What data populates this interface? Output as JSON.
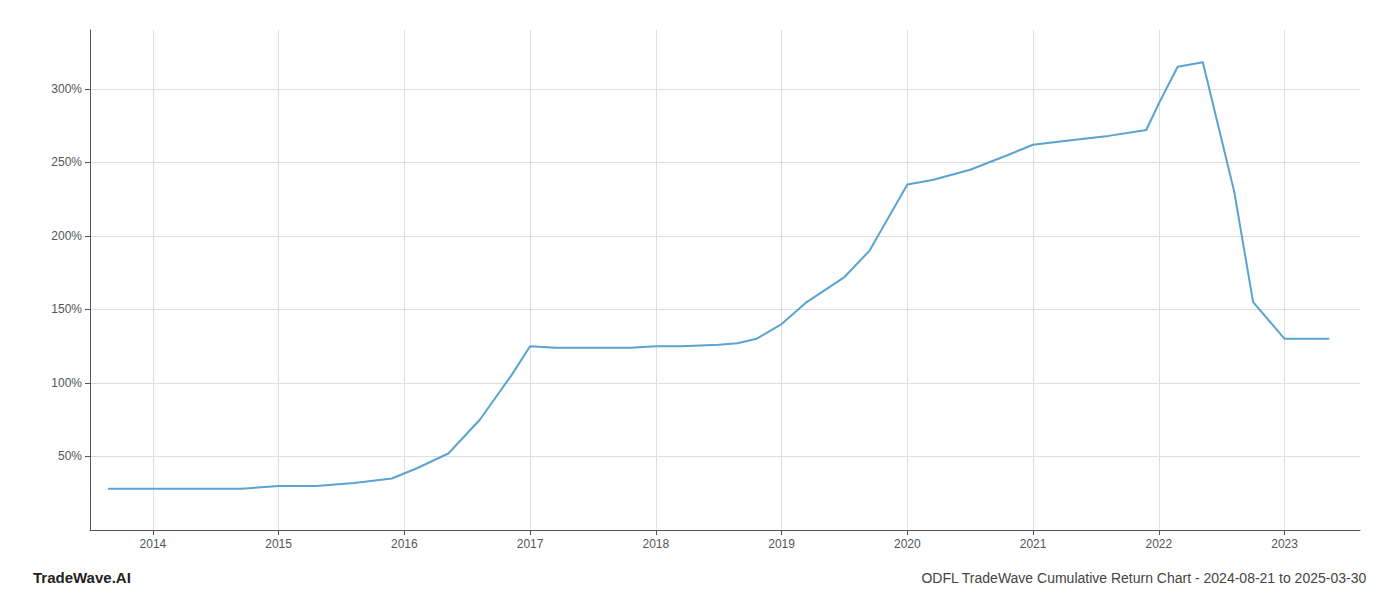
{
  "chart_data": {
    "type": "line",
    "title": "ODFL TradeWave Cumulative Return Chart - 2024-08-21 to 2025-03-30",
    "annotations": [
      "TradeWave.AI"
    ],
    "x": [
      2013.65,
      2014.0,
      2014.3,
      2014.7,
      2015.0,
      2015.3,
      2015.6,
      2015.9,
      2016.1,
      2016.35,
      2016.6,
      2016.85,
      2017.0,
      2017.2,
      2017.5,
      2017.8,
      2018.0,
      2018.2,
      2018.5,
      2018.65,
      2018.8,
      2019.0,
      2019.2,
      2019.5,
      2019.7,
      2020.0,
      2020.2,
      2020.5,
      2020.8,
      2021.0,
      2021.3,
      2021.6,
      2021.9,
      2022.0,
      2022.15,
      2022.35,
      2022.6,
      2022.75,
      2023.0,
      2023.35
    ],
    "values": [
      28,
      28,
      28,
      28,
      30,
      30,
      32,
      35,
      42,
      52,
      75,
      105,
      125,
      124,
      124,
      124,
      125,
      125,
      126,
      127,
      130,
      140,
      155,
      172,
      190,
      235,
      238,
      245,
      255,
      262,
      265,
      268,
      272,
      290,
      315,
      318,
      230,
      155,
      130,
      130
    ],
    "color": "#5ba3d0",
    "xlim": [
      2013.5,
      2023.6
    ],
    "xticks": [
      2014,
      2015,
      2016,
      2017,
      2018,
      2019,
      2020,
      2021,
      2022,
      2023
    ],
    "ylim": [
      0,
      340
    ],
    "yticks": [
      {
        "value": 50,
        "label": "50%"
      },
      {
        "value": 100,
        "label": "100%"
      },
      {
        "value": 150,
        "label": "150%"
      },
      {
        "value": 200,
        "label": "200%"
      },
      {
        "value": 250,
        "label": "250%"
      },
      {
        "value": 300,
        "label": "300%"
      }
    ],
    "grid": true
  }
}
